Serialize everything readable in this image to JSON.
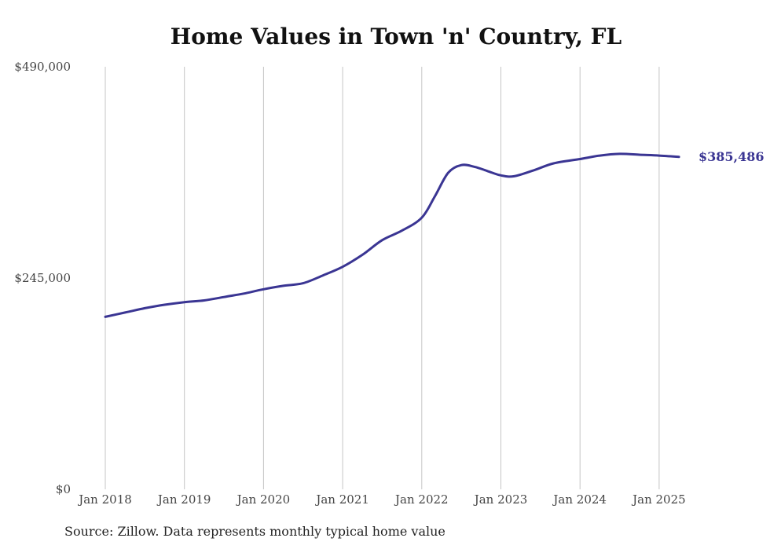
{
  "chart_data": {
    "type": "line",
    "title": "Home Values in Town 'n' Country, FL",
    "source": "Source: Zillow. Data represents monthly typical home value",
    "xlabel": "",
    "ylabel": "",
    "x_ticks": [
      "Jan 2018",
      "Jan 2019",
      "Jan 2020",
      "Jan 2021",
      "Jan 2022",
      "Jan 2023",
      "Jan 2024",
      "Jan 2025"
    ],
    "y_ticks": [
      "$0",
      "$245,000",
      "$490,000"
    ],
    "y_tick_values": [
      0,
      245000,
      490000
    ],
    "ylim": [
      0,
      490000
    ],
    "xlim": [
      "2018-01",
      "2025-04"
    ],
    "grid": "vertical at x ticks",
    "end_label": "$385,486",
    "series": [
      {
        "color": "#3a3593",
        "points": [
          [
            "2018-01",
            200000
          ],
          [
            "2018-04",
            205000
          ],
          [
            "2018-07",
            210000
          ],
          [
            "2018-10",
            214000
          ],
          [
            "2019-01",
            217000
          ],
          [
            "2019-04",
            219000
          ],
          [
            "2019-07",
            223000
          ],
          [
            "2019-10",
            227000
          ],
          [
            "2020-01",
            232000
          ],
          [
            "2020-04",
            236000
          ],
          [
            "2020-07",
            239000
          ],
          [
            "2020-10",
            248000
          ],
          [
            "2021-01",
            258000
          ],
          [
            "2021-04",
            272000
          ],
          [
            "2021-07",
            289000
          ],
          [
            "2021-10",
            300000
          ],
          [
            "2022-01",
            315000
          ],
          [
            "2022-03",
            340000
          ],
          [
            "2022-05",
            367000
          ],
          [
            "2022-07",
            376000
          ],
          [
            "2022-09",
            374000
          ],
          [
            "2022-11",
            369000
          ],
          [
            "2023-01",
            364000
          ],
          [
            "2023-03",
            363000
          ],
          [
            "2023-06",
            370000
          ],
          [
            "2023-09",
            378000
          ],
          [
            "2024-01",
            383000
          ],
          [
            "2024-04",
            387000
          ],
          [
            "2024-07",
            389000
          ],
          [
            "2024-10",
            388000
          ],
          [
            "2025-01",
            387000
          ],
          [
            "2025-04",
            385486
          ]
        ]
      }
    ]
  }
}
